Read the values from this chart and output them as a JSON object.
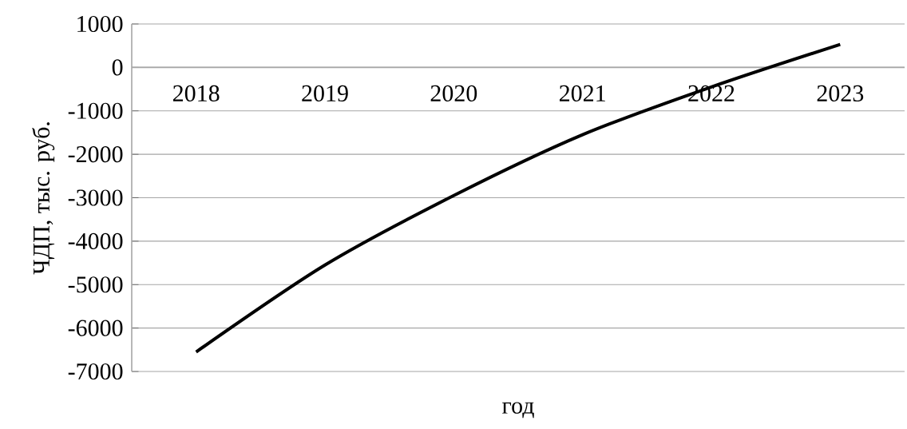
{
  "chart_data": {
    "type": "line",
    "xlabel": "год",
    "ylabel": "ЧДП, тыс. руб.",
    "categories": [
      "2018",
      "2019",
      "2020",
      "2021",
      "2022",
      "2023"
    ],
    "series": [
      {
        "color": "#000000",
        "values": [
          -6550,
          -4550,
          -2950,
          -1550,
          -450,
          530
        ]
      }
    ],
    "ylim": [
      -7000,
      1000
    ],
    "yticks": [
      -7000,
      -6000,
      -5000,
      -4000,
      -3000,
      -2000,
      -1000,
      0,
      1000
    ],
    "grid": "y"
  }
}
